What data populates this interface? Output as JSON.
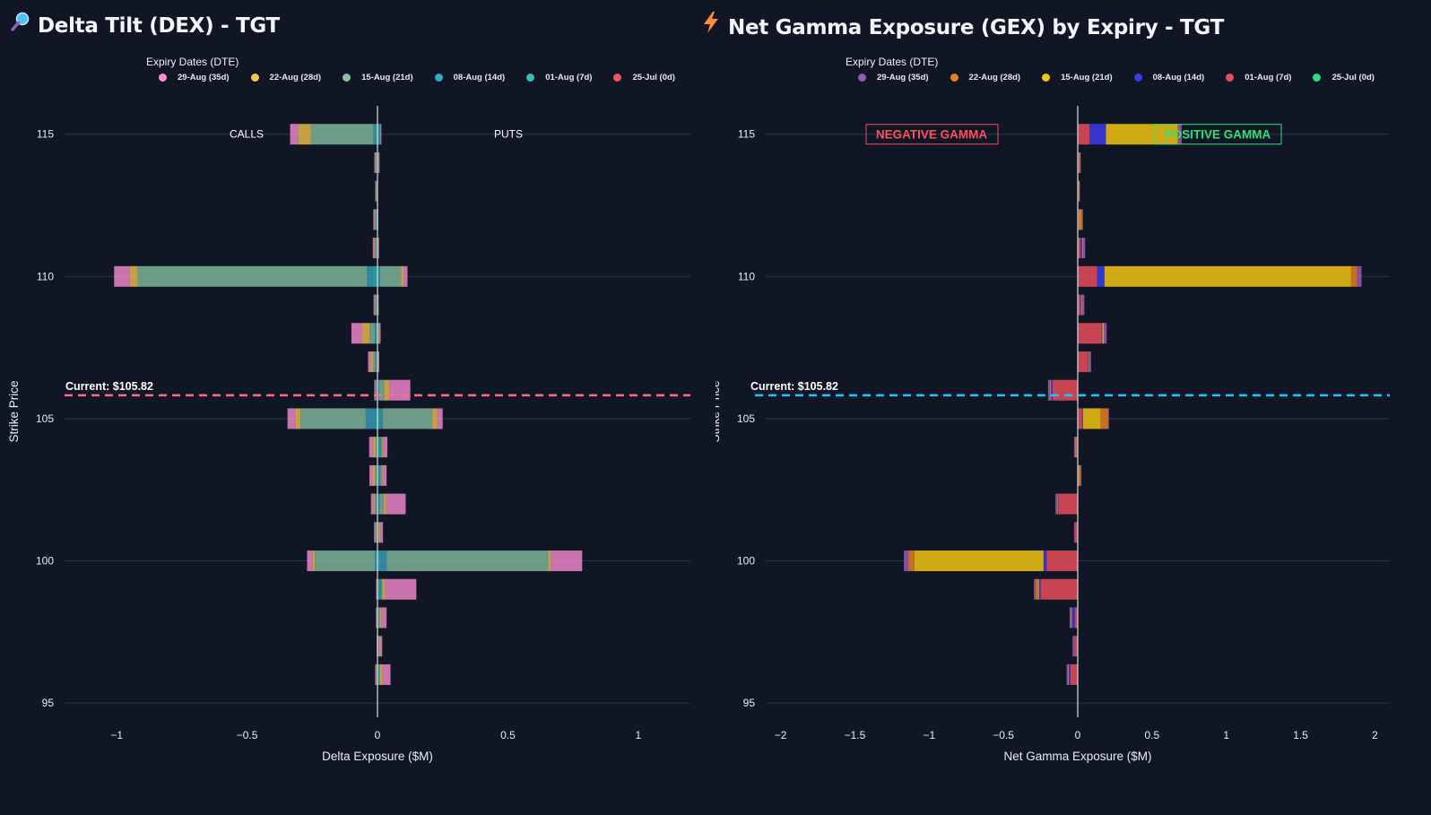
{
  "dex": {
    "title_icon": "magnifier-icon",
    "title": "Delta Tilt (DEX) - TGT",
    "legend_title": "Expiry Dates (DTE)",
    "legend": [
      {
        "label": "29-Aug (35d)",
        "color": "#ff8fd6"
      },
      {
        "label": "22-Aug (28d)",
        "color": "#f7c64f"
      },
      {
        "label": "15-Aug (21d)",
        "color": "#86c2a3"
      },
      {
        "label": "08-Aug (14d)",
        "color": "#3aa6c4"
      },
      {
        "label": "01-Aug (7d)",
        "color": "#30bfb4"
      },
      {
        "label": "25-Jul (0d)",
        "color": "#f05461"
      }
    ],
    "annotations": {
      "calls": "CALLS",
      "puts": "PUTS",
      "current": "Current: $105.82"
    }
  },
  "gex": {
    "title_icon": "lightning-icon",
    "title": "Net Gamma Exposure (GEX) by Expiry - TGT",
    "legend_title": "Expiry Dates (DTE)",
    "legend": [
      {
        "label": "29-Aug (35d)",
        "color": "#9b59b6"
      },
      {
        "label": "22-Aug (28d)",
        "color": "#e67e22"
      },
      {
        "label": "15-Aug (21d)",
        "color": "#f1c40f"
      },
      {
        "label": "08-Aug (14d)",
        "color": "#3b3bea"
      },
      {
        "label": "01-Aug (7d)",
        "color": "#e74c5c"
      },
      {
        "label": "25-Jul (0d)",
        "color": "#2ee07a"
      }
    ],
    "annotations": {
      "negative": "NEGATIVE GAMMA",
      "positive": "POSITIVE GAMMA",
      "current": "Current: $105.82"
    }
  },
  "chart_data": [
    {
      "type": "bar",
      "orientation": "horizontal",
      "title": "Delta Tilt (DEX) - TGT",
      "xlabel": "Delta Exposure ($M)",
      "ylabel": "Strike Price",
      "xlim": [
        -1.2,
        1.2
      ],
      "ylim": [
        94.5,
        116
      ],
      "xticks": [
        {
          "v": -1,
          "label": "−1"
        },
        {
          "v": -0.5,
          "label": "−0.5"
        },
        {
          "v": 0,
          "label": "0"
        },
        {
          "v": 0.5,
          "label": "0.5"
        },
        {
          "v": 1,
          "label": "1"
        }
      ],
      "yticks": [
        95,
        100,
        105,
        110,
        115
      ],
      "current_price": 105.82,
      "current_color": "#ff6b8b",
      "bars": [
        {
          "strike": 115,
          "calls": [
            0.01,
            0.005,
            0.24,
            0.05,
            0.03
          ],
          "puts": [
            0.005,
            0.005,
            0.002,
            0.001,
            0.002
          ]
        },
        {
          "strike": 114,
          "calls": [
            0.001,
            0.002,
            0.004,
            0.002,
            0.003
          ],
          "puts": [
            0.001,
            0.002,
            0.002,
            0.001,
            0.002
          ]
        },
        {
          "strike": 113,
          "calls": [
            0.001,
            0.002,
            0.003,
            0.002,
            0.001
          ],
          "puts": [
            0.0,
            0.0,
            0.0,
            0.0,
            0.001
          ]
        },
        {
          "strike": 112,
          "calls": [
            0.002,
            0.003,
            0.005,
            0.003,
            0.003
          ],
          "puts": [
            0.0,
            0.001,
            0.001,
            0.0,
            0.001
          ]
        },
        {
          "strike": 111,
          "calls": [
            0.002,
            0.003,
            0.004,
            0.004,
            0.005
          ],
          "puts": [
            0.001,
            0.001,
            0.001,
            0.001,
            0.002
          ]
        },
        {
          "strike": 110,
          "calls": [
            0.02,
            0.02,
            0.88,
            0.03,
            0.06
          ],
          "puts": [
            0.005,
            0.005,
            0.08,
            0.01,
            0.015
          ]
        },
        {
          "strike": 109,
          "calls": [
            0.002,
            0.003,
            0.003,
            0.003,
            0.004
          ],
          "puts": [
            0.001,
            0.001,
            0.001,
            0.001,
            0.001
          ]
        },
        {
          "strike": 108,
          "calls": [
            0.005,
            0.005,
            0.02,
            0.03,
            0.04
          ],
          "puts": [
            0.001,
            0.001,
            0.003,
            0.003,
            0.004
          ]
        },
        {
          "strike": 107,
          "calls": [
            0.004,
            0.004,
            0.008,
            0.01,
            0.01
          ],
          "puts": [
            0.001,
            0.001,
            0.002,
            0.001,
            0.002
          ]
        },
        {
          "strike": 106,
          "calls": [
            0.003,
            0.002,
            0.002,
            0.002,
            0.003
          ],
          "puts": [
            0.003,
            0.003,
            0.02,
            0.02,
            0.08
          ]
        },
        {
          "strike": 105,
          "calls": [
            0.005,
            0.04,
            0.25,
            0.02,
            0.03
          ],
          "puts": [
            0.01,
            0.01,
            0.19,
            0.02,
            0.02
          ]
        },
        {
          "strike": 104,
          "calls": [
            0.002,
            0.002,
            0.003,
            0.01,
            0.015
          ],
          "puts": [
            0.01,
            0.004,
            0.004,
            0.005,
            0.015
          ]
        },
        {
          "strike": 103,
          "calls": [
            0.002,
            0.003,
            0.004,
            0.01,
            0.012
          ],
          "puts": [
            0.002,
            0.01,
            0.004,
            0.004,
            0.015
          ]
        },
        {
          "strike": 102,
          "calls": [
            0.002,
            0.004,
            0.004,
            0.005,
            0.01
          ],
          "puts": [
            0.004,
            0.004,
            0.015,
            0.01,
            0.075
          ]
        },
        {
          "strike": 101,
          "calls": [
            0.002,
            0.002,
            0.003,
            0.002,
            0.004
          ],
          "puts": [
            0.001,
            0.001,
            0.004,
            0.005,
            0.01
          ]
        },
        {
          "strike": 100,
          "calls": [
            0.005,
            0.005,
            0.23,
            0.01,
            0.02
          ],
          "puts": [
            0.01,
            0.025,
            0.62,
            0.01,
            0.12
          ]
        },
        {
          "strike": 99,
          "calls": [
            0.0,
            0.001,
            0.001,
            0.001,
            0.002
          ],
          "puts": [
            0.005,
            0.01,
            0.004,
            0.01,
            0.12
          ]
        },
        {
          "strike": 98,
          "calls": [
            0.001,
            0.001,
            0.001,
            0.001,
            0.002
          ],
          "puts": [
            0.002,
            0.003,
            0.004,
            0.006,
            0.02
          ]
        },
        {
          "strike": 97,
          "calls": [
            0.0,
            0.0,
            0.001,
            0.001,
            0.001
          ],
          "puts": [
            0.001,
            0.002,
            0.003,
            0.004,
            0.008
          ]
        },
        {
          "strike": 96,
          "calls": [
            0.001,
            0.001,
            0.002,
            0.002,
            0.003
          ],
          "puts": [
            0.003,
            0.003,
            0.004,
            0.01,
            0.03
          ]
        }
      ]
    },
    {
      "type": "bar",
      "orientation": "horizontal",
      "stacked": true,
      "title": "Net Gamma Exposure (GEX) by Expiry - TGT",
      "xlabel": "Net Gamma Exposure ($M)",
      "ylabel": "Strike Price",
      "xlim": [
        -2.1,
        2.1
      ],
      "ylim": [
        94.5,
        116
      ],
      "xticks": [
        {
          "v": -2,
          "label": "−2"
        },
        {
          "v": -1.5,
          "label": "−1.5"
        },
        {
          "v": -1,
          "label": "−1"
        },
        {
          "v": -0.5,
          "label": "−0.5"
        },
        {
          "v": 0,
          "label": "0"
        },
        {
          "v": 0.5,
          "label": "0.5"
        },
        {
          "v": 1,
          "label": "1"
        },
        {
          "v": 1.5,
          "label": "1.5"
        },
        {
          "v": 2,
          "label": "2"
        }
      ],
      "yticks": [
        95,
        100,
        105,
        110,
        115
      ],
      "current_price": 105.82,
      "current_color": "#1ec8ff",
      "stack_order": [
        "25-Jul (0d)",
        "01-Aug (7d)",
        "08-Aug (14d)",
        "15-Aug (21d)",
        "22-Aug (28d)",
        "29-Aug (35d)"
      ],
      "bars": [
        {
          "strike": 115,
          "values": [
            0,
            0.08,
            0.11,
            0.48,
            0.01,
            0.02
          ]
        },
        {
          "strike": 114,
          "values": [
            0,
            0.01,
            0,
            0.005,
            0,
            0.005
          ]
        },
        {
          "strike": 113,
          "values": [
            0,
            0.005,
            0,
            0.005,
            0,
            0.005
          ]
        },
        {
          "strike": 112,
          "values": [
            0,
            0.01,
            0,
            0.01,
            0.01,
            0.005
          ]
        },
        {
          "strike": 111,
          "values": [
            0,
            0.02,
            0.01,
            0.005,
            0,
            0.015
          ]
        },
        {
          "strike": 110,
          "values": [
            0,
            0.13,
            0.05,
            1.66,
            0.04,
            0.03
          ]
        },
        {
          "strike": 109,
          "values": [
            0,
            0.02,
            0.005,
            0.005,
            0,
            0.015
          ]
        },
        {
          "strike": 108,
          "values": [
            0,
            0.16,
            0.005,
            0.01,
            0,
            0.02
          ]
        },
        {
          "strike": 107,
          "values": [
            0,
            0.07,
            0.005,
            0.005,
            0,
            0.01
          ]
        },
        {
          "strike": 106,
          "values": [
            0,
            -0.17,
            -0.01,
            -0.005,
            0,
            -0.015
          ]
        },
        {
          "strike": 105,
          "values": [
            0,
            0.03,
            0.005,
            0.12,
            0.05,
            0.005
          ]
        },
        {
          "strike": 104,
          "values": [
            0,
            -0.01,
            0,
            -0.005,
            0,
            -0.01
          ]
        },
        {
          "strike": 103,
          "values": [
            0,
            0.005,
            0,
            0.005,
            0.01,
            0.005
          ]
        },
        {
          "strike": 102,
          "values": [
            0,
            -0.13,
            -0.005,
            -0.005,
            0,
            -0.01
          ]
        },
        {
          "strike": 101,
          "values": [
            0,
            -0.02,
            0,
            0,
            0,
            -0.005
          ]
        },
        {
          "strike": 100,
          "values": [
            0,
            -0.21,
            -0.02,
            -0.87,
            -0.04,
            -0.03
          ]
        },
        {
          "strike": 99,
          "values": [
            0,
            -0.25,
            -0.01,
            -0.005,
            -0.02,
            -0.01
          ]
        },
        {
          "strike": 98,
          "values": [
            0,
            -0.02,
            -0.02,
            -0.005,
            0,
            -0.01
          ]
        },
        {
          "strike": 97,
          "values": [
            0,
            -0.02,
            0,
            0,
            0,
            -0.015
          ]
        },
        {
          "strike": 96,
          "values": [
            0,
            -0.05,
            -0.01,
            -0.005,
            0,
            -0.01
          ]
        }
      ]
    }
  ]
}
